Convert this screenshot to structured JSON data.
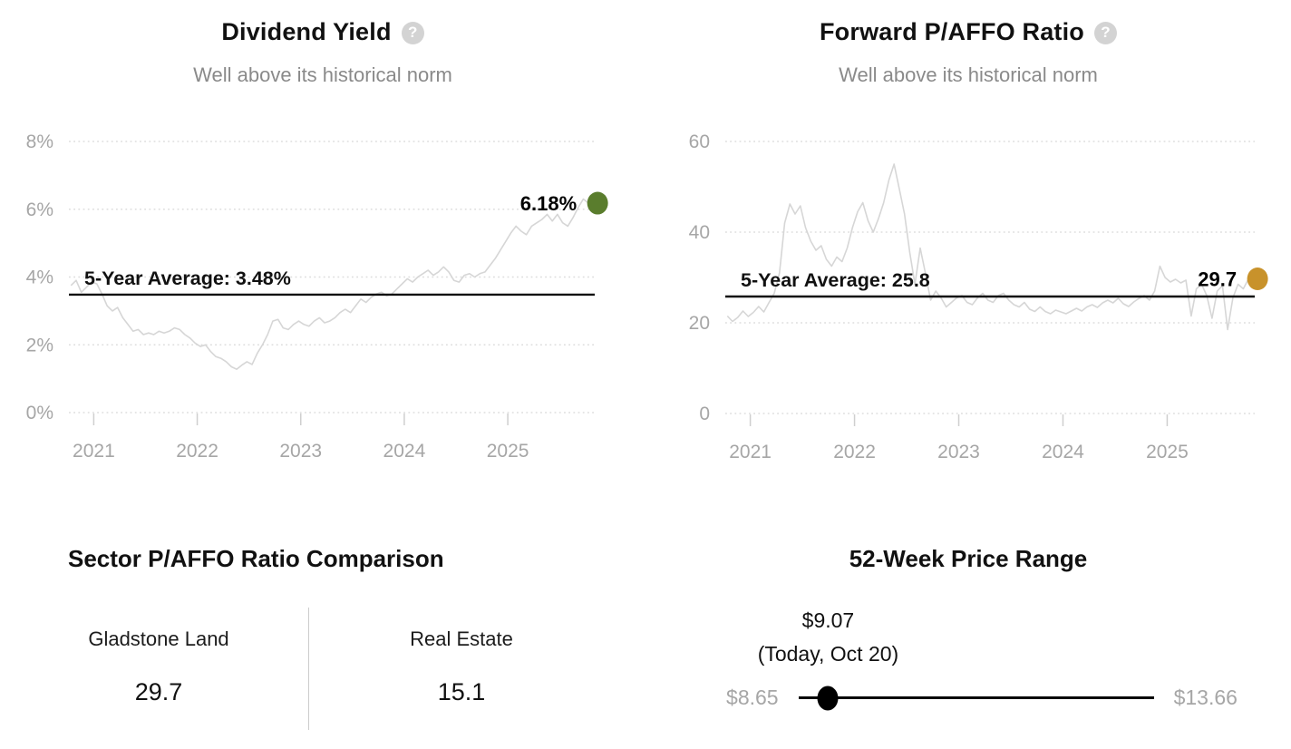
{
  "icons": {
    "help_glyph": "?"
  },
  "chart_data": [
    {
      "type": "line",
      "id": "dividend-yield",
      "title": "Dividend Yield",
      "subtitle": "Well above its historical norm",
      "xlabel": "",
      "ylabel": "",
      "xlim": [
        2020.76,
        2025.84
      ],
      "ylim": [
        0,
        8
      ],
      "grid": "dotted-horizontal",
      "legend": "none",
      "y_ticks": [
        {
          "v": 0,
          "label": "0%"
        },
        {
          "v": 2,
          "label": "2%"
        },
        {
          "v": 4,
          "label": "4%"
        },
        {
          "v": 6,
          "label": "6%"
        },
        {
          "v": 8,
          "label": "8%"
        }
      ],
      "x_ticks": [
        {
          "v": 2021,
          "label": "2021"
        },
        {
          "v": 2022,
          "label": "2022"
        },
        {
          "v": 2023,
          "label": "2023"
        },
        {
          "v": 2024,
          "label": "2024"
        },
        {
          "v": 2025,
          "label": "2025"
        }
      ],
      "line_color": "#d6d6d6",
      "average": {
        "value": 3.48,
        "label": "5-Year Average: 3.48%",
        "line_color": "#111111"
      },
      "last_point": {
        "x": 2025.78,
        "value": 6.18,
        "label": "6.18%",
        "dot_color": "#5a7d2d"
      },
      "series": [
        {
          "name": "Dividend Yield",
          "x": [
            2020.78,
            2020.83,
            2020.88,
            2020.93,
            2020.98,
            2021.03,
            2021.08,
            2021.13,
            2021.18,
            2021.23,
            2021.28,
            2021.33,
            2021.38,
            2021.43,
            2021.48,
            2021.53,
            2021.58,
            2021.63,
            2021.68,
            2021.73,
            2021.78,
            2021.83,
            2021.88,
            2021.93,
            2021.98,
            2022.03,
            2022.08,
            2022.13,
            2022.18,
            2022.23,
            2022.28,
            2022.33,
            2022.38,
            2022.43,
            2022.48,
            2022.53,
            2022.58,
            2022.63,
            2022.68,
            2022.73,
            2022.78,
            2022.83,
            2022.88,
            2022.93,
            2022.98,
            2023.03,
            2023.08,
            2023.13,
            2023.18,
            2023.23,
            2023.28,
            2023.33,
            2023.38,
            2023.43,
            2023.48,
            2023.53,
            2023.58,
            2023.63,
            2023.68,
            2023.73,
            2023.78,
            2023.83,
            2023.88,
            2023.93,
            2023.98,
            2024.03,
            2024.08,
            2024.13,
            2024.18,
            2024.23,
            2024.28,
            2024.33,
            2024.38,
            2024.43,
            2024.48,
            2024.53,
            2024.58,
            2024.63,
            2024.68,
            2024.73,
            2024.78,
            2024.83,
            2024.88,
            2024.93,
            2024.98,
            2025.03,
            2025.08,
            2025.13,
            2025.18,
            2025.23,
            2025.28,
            2025.33,
            2025.38,
            2025.43,
            2025.48,
            2025.53,
            2025.58,
            2025.63,
            2025.68,
            2025.73,
            2025.78
          ],
          "y": [
            3.75,
            3.9,
            3.55,
            3.7,
            3.85,
            3.8,
            3.5,
            3.15,
            3.0,
            3.1,
            2.8,
            2.6,
            2.4,
            2.45,
            2.3,
            2.35,
            2.3,
            2.4,
            2.35,
            2.4,
            2.5,
            2.45,
            2.3,
            2.2,
            2.05,
            1.95,
            2.0,
            1.8,
            1.65,
            1.6,
            1.5,
            1.35,
            1.28,
            1.4,
            1.5,
            1.42,
            1.75,
            2.0,
            2.3,
            2.7,
            2.75,
            2.5,
            2.45,
            2.6,
            2.7,
            2.6,
            2.55,
            2.7,
            2.8,
            2.65,
            2.7,
            2.8,
            2.95,
            3.05,
            2.95,
            3.15,
            3.35,
            3.25,
            3.4,
            3.5,
            3.55,
            3.45,
            3.5,
            3.65,
            3.8,
            3.95,
            3.85,
            4.0,
            4.1,
            4.2,
            4.05,
            4.15,
            4.3,
            4.15,
            3.9,
            3.85,
            4.05,
            4.1,
            4.0,
            4.1,
            4.15,
            4.35,
            4.55,
            4.8,
            5.05,
            5.3,
            5.5,
            5.35,
            5.25,
            5.5,
            5.6,
            5.7,
            5.85,
            5.65,
            5.85,
            5.6,
            5.5,
            5.75,
            6.05,
            6.3,
            6.18
          ]
        }
      ]
    },
    {
      "type": "line",
      "id": "forward-paffo-ratio",
      "title": "Forward P/AFFO Ratio",
      "subtitle": "Well above its historical norm",
      "xlabel": "",
      "ylabel": "",
      "xlim": [
        2020.76,
        2025.84
      ],
      "ylim": [
        0,
        60
      ],
      "grid": "dotted-horizontal",
      "legend": "none",
      "y_ticks": [
        {
          "v": 0,
          "label": "0"
        },
        {
          "v": 20,
          "label": "20"
        },
        {
          "v": 40,
          "label": "40"
        },
        {
          "v": 60,
          "label": "60"
        }
      ],
      "x_ticks": [
        {
          "v": 2021,
          "label": "2021"
        },
        {
          "v": 2022,
          "label": "2022"
        },
        {
          "v": 2023,
          "label": "2023"
        },
        {
          "v": 2024,
          "label": "2024"
        },
        {
          "v": 2025,
          "label": "2025"
        }
      ],
      "line_color": "#d6d6d6",
      "average": {
        "value": 25.8,
        "label": "5-Year Average: 25.8",
        "line_color": "#111111"
      },
      "last_point": {
        "x": 2025.78,
        "value": 29.7,
        "label": "29.7",
        "dot_color": "#c8922b"
      },
      "series": [
        {
          "name": "Forward P/AFFO Ratio",
          "x": [
            2020.78,
            2020.83,
            2020.88,
            2020.93,
            2020.98,
            2021.03,
            2021.08,
            2021.13,
            2021.18,
            2021.23,
            2021.28,
            2021.33,
            2021.38,
            2021.43,
            2021.48,
            2021.53,
            2021.58,
            2021.63,
            2021.68,
            2021.73,
            2021.78,
            2021.83,
            2021.88,
            2021.93,
            2021.98,
            2022.03,
            2022.08,
            2022.13,
            2022.18,
            2022.23,
            2022.28,
            2022.33,
            2022.38,
            2022.43,
            2022.48,
            2022.53,
            2022.58,
            2022.63,
            2022.68,
            2022.73,
            2022.78,
            2022.83,
            2022.88,
            2022.93,
            2022.98,
            2023.03,
            2023.08,
            2023.13,
            2023.18,
            2023.23,
            2023.28,
            2023.33,
            2023.38,
            2023.43,
            2023.48,
            2023.53,
            2023.58,
            2023.63,
            2023.68,
            2023.73,
            2023.78,
            2023.83,
            2023.88,
            2023.93,
            2023.98,
            2024.03,
            2024.08,
            2024.13,
            2024.18,
            2024.23,
            2024.28,
            2024.33,
            2024.38,
            2024.43,
            2024.48,
            2024.53,
            2024.58,
            2024.63,
            2024.68,
            2024.73,
            2024.78,
            2024.83,
            2024.88,
            2024.93,
            2024.98,
            2025.03,
            2025.08,
            2025.13,
            2025.18,
            2025.23,
            2025.28,
            2025.33,
            2025.38,
            2025.43,
            2025.48,
            2025.53,
            2025.58,
            2025.63,
            2025.68,
            2025.73,
            2025.78
          ],
          "y": [
            21.5,
            20.3,
            21.2,
            22.6,
            21.4,
            22.3,
            23.6,
            22.4,
            24.5,
            26.5,
            31.0,
            42.0,
            46.2,
            44.0,
            45.8,
            41.0,
            38.0,
            36.0,
            37.0,
            34.0,
            32.5,
            34.5,
            33.5,
            36.5,
            41.0,
            44.5,
            46.5,
            42.5,
            40.0,
            43.0,
            46.5,
            51.5,
            55.0,
            49.5,
            44.0,
            35.5,
            28.5,
            36.5,
            31.0,
            25.0,
            27.0,
            25.5,
            23.5,
            24.5,
            25.5,
            26.0,
            24.5,
            24.0,
            25.5,
            26.5,
            25.0,
            24.5,
            26.0,
            26.5,
            25.0,
            24.0,
            23.5,
            24.5,
            23.0,
            22.5,
            23.5,
            22.5,
            22.0,
            22.8,
            22.4,
            22.0,
            22.6,
            23.2,
            22.6,
            23.5,
            24.0,
            23.4,
            24.4,
            25.0,
            24.4,
            25.4,
            24.2,
            23.6,
            24.6,
            25.4,
            26.0,
            25.0,
            27.0,
            32.5,
            30.0,
            29.0,
            29.6,
            28.8,
            29.4,
            21.5,
            27.5,
            28.5,
            26.0,
            21.0,
            27.0,
            28.2,
            18.5,
            25.5,
            28.5,
            27.5,
            29.7
          ]
        }
      ]
    },
    {
      "type": "table",
      "id": "sector-paffo-comparison",
      "title": "Sector P/AFFO Ratio Comparison",
      "columns": [
        {
          "label": "Gladstone Land",
          "value": "29.7"
        },
        {
          "label": "Real Estate",
          "value": "15.1"
        }
      ]
    },
    {
      "type": "range",
      "id": "52-week-price-range",
      "title": "52-Week Price Range",
      "min": 8.65,
      "max": 13.66,
      "current": 9.07,
      "min_label": "$8.65",
      "max_label": "$13.66",
      "current_label": "$9.07",
      "current_sublabel": "(Today, Oct 20)"
    }
  ]
}
